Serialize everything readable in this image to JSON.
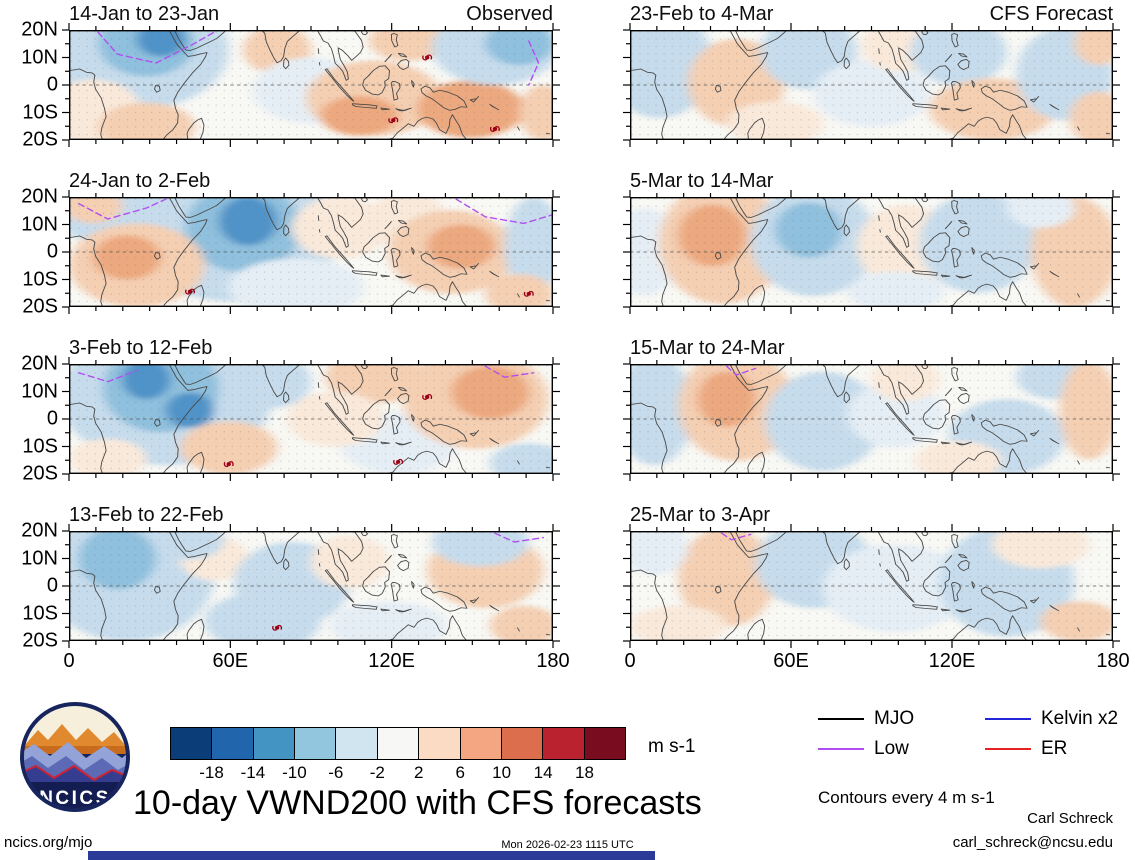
{
  "chart_data": {
    "type": "heatmap",
    "title": "10-day VWND200 with CFS forecasts",
    "variable": "VWND200",
    "units": "m s-1",
    "columns": [
      "Observed",
      "CFS Forecast"
    ],
    "panels": [
      {
        "title": "14-Jan to 23-Jan",
        "column": "Observed"
      },
      {
        "title": "23-Feb to 4-Mar",
        "column": "CFS Forecast"
      },
      {
        "title": "24-Jan to 2-Feb",
        "column": "Observed"
      },
      {
        "title": "5-Mar to 14-Mar",
        "column": "CFS Forecast"
      },
      {
        "title": "3-Feb to 12-Feb",
        "column": "Observed"
      },
      {
        "title": "15-Mar to 24-Mar",
        "column": "CFS Forecast"
      },
      {
        "title": "13-Feb to 22-Feb",
        "column": "Observed"
      },
      {
        "title": "25-Mar to 3-Apr",
        "column": "CFS Forecast"
      }
    ],
    "x_axis": {
      "ticks": [
        "0",
        "60E",
        "120E",
        "180"
      ],
      "range_deg_lon": [
        0,
        180
      ]
    },
    "y_axis": {
      "ticks": [
        "20N",
        "10N",
        "0",
        "10S",
        "20S"
      ],
      "range_deg_lat": [
        -20,
        20
      ]
    },
    "colorbar": {
      "levels": [
        -18,
        -14,
        -10,
        -6,
        -2,
        2,
        6,
        10,
        14,
        18
      ],
      "colors": [
        "#0b3d78",
        "#2166ac",
        "#4393c3",
        "#92c5de",
        "#d1e5f0",
        "#f7f7f5",
        "#fcdbc5",
        "#f4a582",
        "#dd6e4d",
        "#bb2230",
        "#7a0c20"
      ],
      "units": "m s-1"
    },
    "legend": [
      "MJO",
      "Kelvin x2",
      "Low",
      "ER"
    ],
    "contour_note": "Contours every 4 m s-1",
    "legend_position": "bottom-right",
    "grid": false
  },
  "axes": {
    "lat_ticks": [
      "20N",
      "10N",
      "0",
      "10S",
      "20S"
    ],
    "lon_ticks": [
      "0",
      "60E",
      "120E",
      "180"
    ]
  },
  "colorbar": {
    "labels": [
      "-18",
      "-14",
      "-10",
      "-6",
      "-2",
      "2",
      "6",
      "10",
      "14",
      "18"
    ],
    "colors": [
      "#0b3d78",
      "#2166ac",
      "#4393c3",
      "#92c5de",
      "#d1e5f0",
      "#f7f7f5",
      "#fcdbc5",
      "#f4a582",
      "#dd6e4d",
      "#bb2230",
      "#7a0c20"
    ],
    "units_label": "m s-1"
  },
  "legend": {
    "items": [
      {
        "label": "MJO",
        "color": "#000000"
      },
      {
        "label": "Kelvin x2",
        "color": "#2525d8"
      },
      {
        "label": "Low",
        "color": "#b24df2"
      },
      {
        "label": "ER",
        "color": "#e82222"
      }
    ],
    "note": "Contours every 4 m s-1"
  },
  "footer": {
    "title": "10-day VWND200 with CFS forecasts",
    "site": "ncics.org/mjo",
    "timestamp": "Mon 2026-02-23 1115 UTC",
    "credit_name": "Carl Schreck",
    "credit_email": "carl_schreck@ncsu.edu",
    "logo_text": "NCICS",
    "brand_bar_color": "#2b3a97"
  },
  "map_palette": {
    "bg": "#f8f8f4",
    "b0": "#e5eef5",
    "b1": "#c6dcec",
    "b2": "#8fc0dd",
    "b3": "#4f93c8",
    "o0": "#f9e9da",
    "o1": "#f4cfb2",
    "o2": "#eca87e",
    "o3": "#de7a50",
    "cyclone": "#9c0016"
  },
  "panels": [
    {
      "id": "obs-1",
      "title": "14-Jan to 23-Jan",
      "annotation": "Observed",
      "blobs": [
        [
          0.13,
          0.18,
          0.2,
          0.55,
          "b1"
        ],
        [
          0.16,
          0.12,
          0.1,
          0.3,
          "b2"
        ],
        [
          0.19,
          0.08,
          0.05,
          0.16,
          "b3"
        ],
        [
          0.05,
          0.75,
          0.1,
          0.3,
          "o0"
        ],
        [
          0.16,
          0.88,
          0.1,
          0.22,
          "o1"
        ],
        [
          0.43,
          0.18,
          0.07,
          0.22,
          "o1"
        ],
        [
          0.5,
          0.55,
          0.12,
          0.3,
          "b0"
        ],
        [
          0.63,
          0.62,
          0.14,
          0.34,
          "o1"
        ],
        [
          0.6,
          0.78,
          0.08,
          0.18,
          "o2"
        ],
        [
          0.7,
          0.1,
          0.08,
          0.18,
          "o1"
        ],
        [
          0.83,
          0.72,
          0.11,
          0.26,
          "o2"
        ],
        [
          0.88,
          0.16,
          0.13,
          0.34,
          "b1"
        ],
        [
          0.93,
          0.12,
          0.07,
          0.2,
          "b2"
        ],
        [
          0.98,
          0.75,
          0.05,
          0.25,
          "o1"
        ]
      ],
      "cyclones": [
        [
          0.74,
          0.25
        ],
        [
          0.67,
          0.82
        ],
        [
          0.88,
          0.9
        ]
      ],
      "low": [
        [
          [
            0.06,
            0.02
          ],
          [
            0.1,
            0.22
          ],
          [
            0.18,
            0.3
          ],
          [
            0.26,
            0.12
          ],
          [
            0.3,
            0.02
          ]
        ],
        [
          [
            0.95,
            0.1
          ],
          [
            0.97,
            0.3
          ],
          [
            0.95,
            0.5
          ]
        ]
      ]
    },
    {
      "id": "fcst-1",
      "title": "23-Feb to 4-Mar",
      "annotation": "CFS Forecast",
      "blobs": [
        [
          0.06,
          0.3,
          0.11,
          0.5,
          "b1"
        ],
        [
          0.22,
          0.48,
          0.1,
          0.4,
          "o1"
        ],
        [
          0.37,
          0.2,
          0.1,
          0.34,
          "b1"
        ],
        [
          0.5,
          0.58,
          0.12,
          0.3,
          "b0"
        ],
        [
          0.56,
          0.14,
          0.08,
          0.24,
          "o0"
        ],
        [
          0.68,
          0.2,
          0.1,
          0.3,
          "b1"
        ],
        [
          0.75,
          0.72,
          0.13,
          0.28,
          "o1"
        ],
        [
          0.9,
          0.4,
          0.1,
          0.42,
          "b1"
        ],
        [
          0.97,
          0.12,
          0.05,
          0.2,
          "o1"
        ],
        [
          0.97,
          0.8,
          0.06,
          0.24,
          "o1"
        ],
        [
          0.3,
          0.85,
          0.1,
          0.2,
          "o0"
        ]
      ],
      "cyclones": [],
      "low": []
    },
    {
      "id": "obs-2",
      "title": "24-Jan to 2-Feb",
      "annotation": "",
      "blobs": [
        [
          0.07,
          0.12,
          0.1,
          0.3,
          "b1"
        ],
        [
          0.34,
          0.35,
          0.22,
          0.6,
          "b1"
        ],
        [
          0.36,
          0.28,
          0.12,
          0.4,
          "b2"
        ],
        [
          0.37,
          0.22,
          0.06,
          0.22,
          "b3"
        ],
        [
          0.14,
          0.62,
          0.14,
          0.38,
          "o1"
        ],
        [
          0.12,
          0.55,
          0.07,
          0.2,
          "o2"
        ],
        [
          0.05,
          0.08,
          0.06,
          0.16,
          "o1"
        ],
        [
          0.56,
          0.28,
          0.1,
          0.28,
          "o0"
        ],
        [
          0.47,
          0.82,
          0.14,
          0.26,
          "b0"
        ],
        [
          0.7,
          0.2,
          0.08,
          0.25,
          "o0"
        ],
        [
          0.79,
          0.5,
          0.13,
          0.38,
          "o1"
        ],
        [
          0.81,
          0.45,
          0.07,
          0.2,
          "o2"
        ],
        [
          0.96,
          0.45,
          0.06,
          0.45,
          "b1"
        ],
        [
          0.93,
          0.88,
          0.07,
          0.18,
          "o1"
        ]
      ],
      "cyclones": [
        [
          0.25,
          0.86
        ],
        [
          0.95,
          0.88
        ]
      ],
      "low": [
        [
          [
            0.02,
            0.06
          ],
          [
            0.08,
            0.2
          ],
          [
            0.16,
            0.1
          ],
          [
            0.2,
            0.02
          ]
        ],
        [
          [
            0.8,
            0.02
          ],
          [
            0.86,
            0.18
          ],
          [
            0.94,
            0.24
          ],
          [
            1.0,
            0.16
          ]
        ]
      ]
    },
    {
      "id": "fcst-2",
      "title": "5-Mar to 14-Mar",
      "annotation": "",
      "blobs": [
        [
          0.03,
          0.5,
          0.07,
          0.4,
          "b0"
        ],
        [
          0.19,
          0.42,
          0.13,
          0.55,
          "o1"
        ],
        [
          0.17,
          0.35,
          0.07,
          0.28,
          "o2"
        ],
        [
          0.38,
          0.4,
          0.13,
          0.5,
          "b1"
        ],
        [
          0.37,
          0.3,
          0.07,
          0.25,
          "b2"
        ],
        [
          0.57,
          0.45,
          0.1,
          0.38,
          "o0"
        ],
        [
          0.72,
          0.42,
          0.12,
          0.45,
          "b1"
        ],
        [
          0.92,
          0.5,
          0.09,
          0.5,
          "o1"
        ],
        [
          0.55,
          0.86,
          0.1,
          0.18,
          "b0"
        ],
        [
          0.85,
          0.1,
          0.07,
          0.18,
          "b0"
        ]
      ],
      "cyclones": [],
      "low": []
    },
    {
      "id": "obs-3",
      "title": "3-Feb to 12-Feb",
      "annotation": "",
      "blobs": [
        [
          0.2,
          0.3,
          0.22,
          0.62,
          "b1"
        ],
        [
          0.19,
          0.22,
          0.12,
          0.4,
          "b2"
        ],
        [
          0.16,
          0.14,
          0.05,
          0.18,
          "b3"
        ],
        [
          0.25,
          0.42,
          0.05,
          0.16,
          "b3"
        ],
        [
          0.42,
          0.16,
          0.08,
          0.24,
          "b1"
        ],
        [
          0.33,
          0.76,
          0.1,
          0.24,
          "o1"
        ],
        [
          0.08,
          0.86,
          0.08,
          0.18,
          "o0"
        ],
        [
          0.63,
          0.12,
          0.1,
          0.24,
          "o1"
        ],
        [
          0.68,
          0.72,
          0.12,
          0.28,
          "b0"
        ],
        [
          0.84,
          0.32,
          0.15,
          0.45,
          "o1"
        ],
        [
          0.87,
          0.26,
          0.08,
          0.24,
          "o2"
        ],
        [
          0.95,
          0.9,
          0.08,
          0.18,
          "b1"
        ],
        [
          0.55,
          0.5,
          0.1,
          0.25,
          "o0"
        ]
      ],
      "cyclones": [
        [
          0.74,
          0.3
        ],
        [
          0.33,
          0.91
        ],
        [
          0.68,
          0.89
        ]
      ],
      "low": [
        [
          [
            0.02,
            0.08
          ],
          [
            0.08,
            0.16
          ],
          [
            0.14,
            0.06
          ]
        ],
        [
          [
            0.86,
            0.02
          ],
          [
            0.9,
            0.12
          ],
          [
            0.96,
            0.08
          ]
        ]
      ]
    },
    {
      "id": "fcst-3",
      "title": "15-Mar to 24-Mar",
      "annotation": "",
      "blobs": [
        [
          0.05,
          0.42,
          0.08,
          0.5,
          "b1"
        ],
        [
          0.22,
          0.38,
          0.12,
          0.5,
          "o1"
        ],
        [
          0.2,
          0.32,
          0.06,
          0.25,
          "o2"
        ],
        [
          0.4,
          0.52,
          0.12,
          0.45,
          "b1"
        ],
        [
          0.55,
          0.46,
          0.1,
          0.3,
          "b0"
        ],
        [
          0.57,
          0.14,
          0.07,
          0.2,
          "o0"
        ],
        [
          0.78,
          0.66,
          0.12,
          0.34,
          "b1"
        ],
        [
          0.88,
          0.12,
          0.08,
          0.2,
          "b1"
        ],
        [
          0.95,
          0.42,
          0.06,
          0.45,
          "o1"
        ],
        [
          0.68,
          0.88,
          0.09,
          0.18,
          "o0"
        ]
      ],
      "cyclones": [],
      "low": [
        [
          [
            0.2,
            0.02
          ],
          [
            0.22,
            0.1
          ],
          [
            0.26,
            0.04
          ]
        ]
      ]
    },
    {
      "id": "obs-4",
      "title": "13-Feb to 22-Feb",
      "annotation": "",
      "blobs": [
        [
          0.12,
          0.4,
          0.18,
          0.6,
          "b1"
        ],
        [
          0.1,
          0.25,
          0.08,
          0.28,
          "b2"
        ],
        [
          0.3,
          0.25,
          0.07,
          0.2,
          "o0"
        ],
        [
          0.46,
          0.48,
          0.12,
          0.38,
          "b1"
        ],
        [
          0.4,
          0.82,
          0.12,
          0.26,
          "b1"
        ],
        [
          0.58,
          0.28,
          0.08,
          0.24,
          "o0"
        ],
        [
          0.66,
          0.86,
          0.12,
          0.22,
          "b0"
        ],
        [
          0.86,
          0.36,
          0.12,
          0.34,
          "o1"
        ],
        [
          0.85,
          0.1,
          0.1,
          0.22,
          "b1"
        ],
        [
          0.94,
          0.86,
          0.07,
          0.18,
          "o1"
        ],
        [
          0.25,
          0.08,
          0.07,
          0.18,
          "b1"
        ]
      ],
      "cyclones": [
        [
          0.43,
          0.88
        ]
      ],
      "low": [
        [
          [
            0.88,
            0.02
          ],
          [
            0.92,
            0.1
          ],
          [
            0.98,
            0.06
          ]
        ]
      ]
    },
    {
      "id": "fcst-4",
      "title": "25-Mar to 3-Apr",
      "annotation": "",
      "blobs": [
        [
          0.2,
          0.42,
          0.1,
          0.45,
          "o1"
        ],
        [
          0.38,
          0.3,
          0.12,
          0.4,
          "b1"
        ],
        [
          0.55,
          0.52,
          0.15,
          0.4,
          "b0"
        ],
        [
          0.78,
          0.46,
          0.14,
          0.5,
          "b1"
        ],
        [
          0.85,
          0.12,
          0.1,
          0.22,
          "o0"
        ],
        [
          0.93,
          0.82,
          0.08,
          0.18,
          "o1"
        ],
        [
          0.1,
          0.86,
          0.1,
          0.18,
          "o0"
        ],
        [
          0.05,
          0.15,
          0.07,
          0.25,
          "b0"
        ]
      ],
      "cyclones": [],
      "low": [
        [
          [
            0.19,
            0.02
          ],
          [
            0.21,
            0.08
          ],
          [
            0.25,
            0.03
          ]
        ]
      ]
    }
  ]
}
